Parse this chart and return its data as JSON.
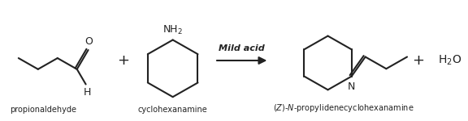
{
  "bg_color": "#ffffff",
  "line_color": "#222222",
  "text_color": "#222222",
  "label_propionaldehyde": "propionaldehyde",
  "label_cyclohexanamine": "cyclohexanamine",
  "label_product": "(Z)-N-propylidenecyclohexanamine",
  "label_mild_acid": "Mild acid",
  "label_water": "H$_2$O",
  "label_NH2": "NH$_2$",
  "label_H": "H",
  "label_O": "O",
  "label_N": "N",
  "figsize": [
    5.76,
    1.5
  ],
  "dpi": 100
}
